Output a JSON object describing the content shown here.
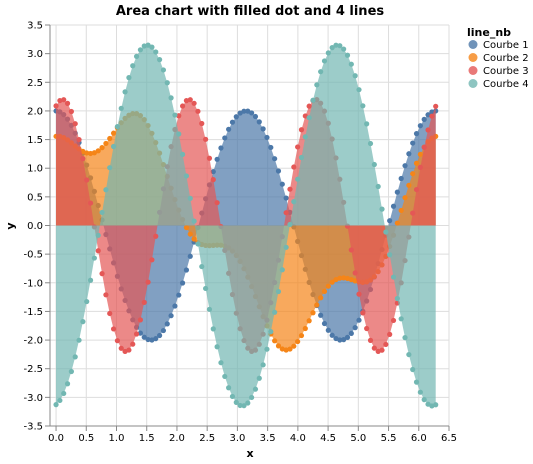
{
  "chart_data": {
    "type": "area",
    "title": "Area chart with filled dot and 4 lines",
    "xlabel": "x",
    "ylabel": "y",
    "xlim": [
      -0.1,
      6.5
    ],
    "ylim": [
      -3.5,
      3.5
    ],
    "x_ticks": [
      "0.0",
      "0.5",
      "1.0",
      "1.5",
      "2.0",
      "2.5",
      "3.0",
      "3.5",
      "4.0",
      "4.5",
      "5.0",
      "5.5",
      "6.0",
      "6.5"
    ],
    "y_ticks": [
      "3.5",
      "3.0",
      "2.5",
      "2.0",
      "1.5",
      "1.0",
      "0.5",
      "0.0",
      "-0.5",
      "-1.0",
      "-1.5",
      "-2.0",
      "-2.5",
      "-3.0",
      "-3.5"
    ],
    "grid": true,
    "legend": {
      "title": "line_nb",
      "placement": "top-right",
      "entries": [
        "Courbe 1",
        "Courbe 2",
        "Courbe 3",
        "Courbe 4"
      ]
    },
    "x_range": [
      0,
      6.28
    ],
    "point_count": 100,
    "series": [
      {
        "name": "Courbe 1",
        "color": "#4c78a8",
        "amplitude": 2.0,
        "frequency": 2,
        "phase": 1.5708
      },
      {
        "name": "Courbe 2",
        "color": "#f58518",
        "amplitude": 2.0,
        "frequency": 1,
        "phase": 0.85,
        "ripple": 0.8,
        "ripple_freq": 4
      },
      {
        "name": "Courbe 3",
        "color": "#e45756",
        "amplitude": 2.2,
        "frequency": 3,
        "phase": 1.25
      },
      {
        "name": "Courbe 4",
        "color": "#72b7b2",
        "amplitude": 3.15,
        "frequency": 2,
        "phase": -1.45
      }
    ]
  }
}
